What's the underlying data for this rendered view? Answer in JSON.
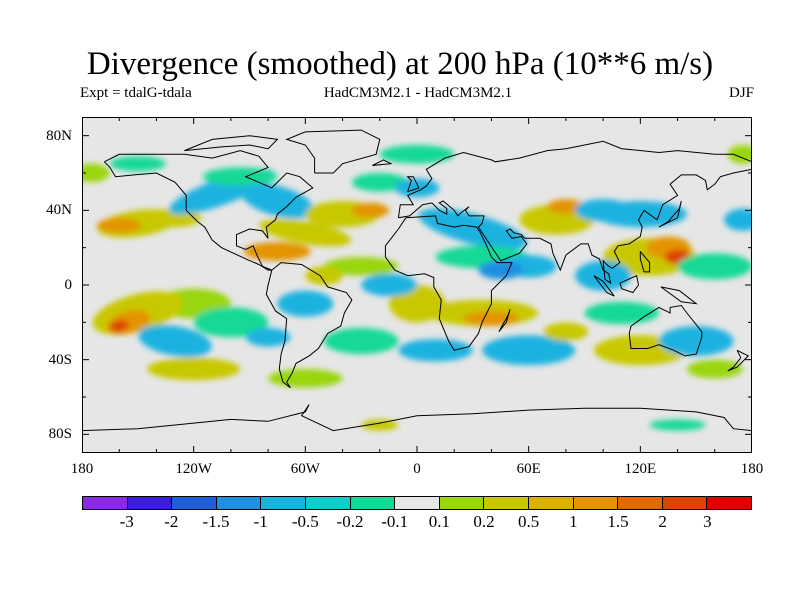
{
  "title": "Divergence (smoothed) at 200 hPa (10**6 m/s)",
  "subtitle_left": "Expt = tdalG-tdala",
  "subtitle_center": "HadCM3M2.1 - HadCM3M2.1",
  "subtitle_right": "DJF",
  "lat_ticks": [
    "80N",
    "40N",
    "0",
    "40S",
    "80S"
  ],
  "lon_ticks": [
    "180",
    "120W",
    "60W",
    "0",
    "60E",
    "120E",
    "180"
  ],
  "colorbar": {
    "colors": [
      "#8a2be2",
      "#3a1fd6",
      "#1f5fd6",
      "#1e90e0",
      "#1cb2e0",
      "#12cccc",
      "#12d996",
      "#e6e6e6",
      "#99d60a",
      "#c8c800",
      "#dcb000",
      "#e39400",
      "#e06a00",
      "#dd4300",
      "#e00000"
    ],
    "labels": [
      "-3",
      "-2",
      "-1.5",
      "-1",
      "-0.5",
      "-0.2",
      "-0.1",
      "0.1",
      "0.2",
      "0.5",
      "1",
      "1.5",
      "2",
      "3"
    ]
  },
  "colors": {
    "background": "#e6e6e6",
    "negative_light": "#12d996",
    "negative_mid": "#1cb2e0",
    "negative_strong": "#1e90e0",
    "positive_light": "#99d60a",
    "positive_mid": "#c8c800",
    "positive_strong": "#e39400",
    "positive_max": "#dd4300"
  }
}
